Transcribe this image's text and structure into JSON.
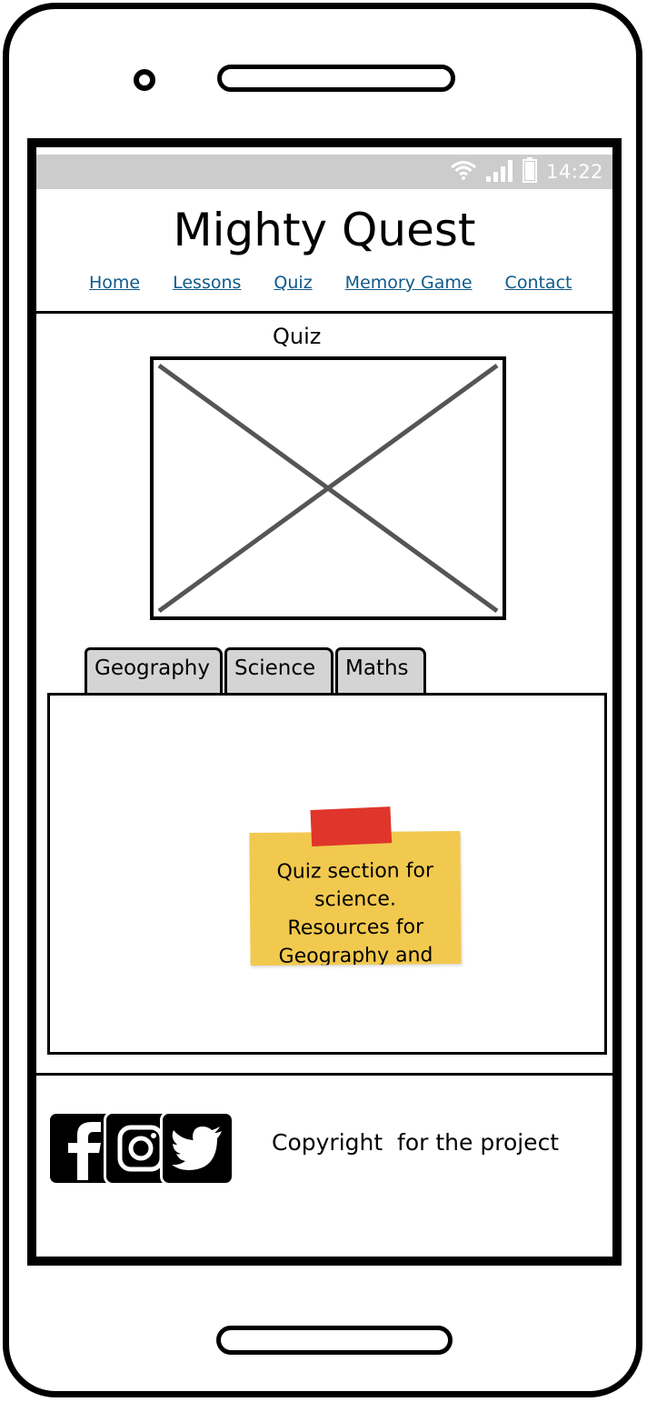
{
  "status_bar": {
    "time": "14:22"
  },
  "site": {
    "title": "Mighty Quest"
  },
  "nav": {
    "items": [
      {
        "label": "Home"
      },
      {
        "label": "Lessons"
      },
      {
        "label": "Quiz"
      },
      {
        "label": "Memory Game"
      },
      {
        "label": "Contact"
      }
    ]
  },
  "page": {
    "heading": "Quiz"
  },
  "tabs": [
    {
      "label": "Geography"
    },
    {
      "label": "Science"
    },
    {
      "label": "Maths"
    }
  ],
  "sticky_note": {
    "text": "Quiz section for\nscience.\nResources for\nGeography and"
  },
  "footer": {
    "social": [
      "facebook-icon",
      "instagram-icon",
      "twitter-icon"
    ],
    "copyright": "Copyright  for the project"
  },
  "colors": {
    "status_bar": "#cccccc",
    "nav_link": "#0e5a8c",
    "tab_bg": "#d4d4d4",
    "sticky_note": "#f2c94f",
    "sticky_tape": "#e0352b"
  }
}
